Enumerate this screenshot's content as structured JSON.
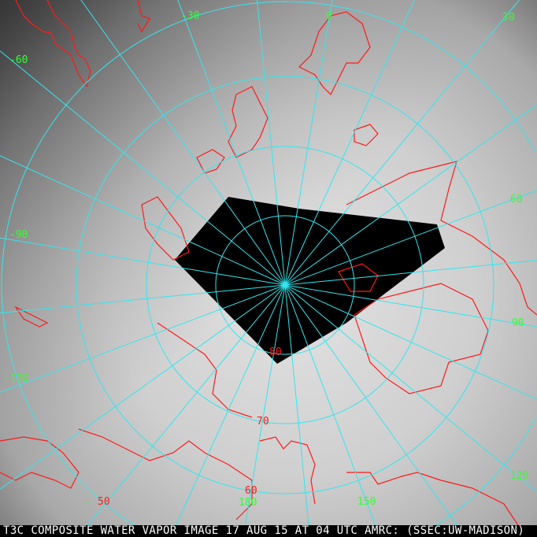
{
  "caption": "T3C COMPOSITE WATER VAPOR IMAGE 17 AUG 15 AT 04 UTC AMRC: (SSEC:UW-MADISON)",
  "colors": {
    "graticule": "#33e6ee",
    "coastline": "#ff1a1a",
    "longitude_label": "#33ff33",
    "latitude_label": "#ff1a1a",
    "no_data": "#000000"
  },
  "longitude_labels": [
    {
      "text": "-30"
    },
    {
      "text": "0"
    },
    {
      "text": "30"
    },
    {
      "text": "-60"
    },
    {
      "text": "-90"
    },
    {
      "text": "60"
    },
    {
      "text": "90"
    },
    {
      "text": "-120"
    },
    {
      "text": "120"
    },
    {
      "text": "180"
    },
    {
      "text": "150"
    },
    {
      "text": "-"
    }
  ],
  "latitude_labels": [
    {
      "text": "80"
    },
    {
      "text": "70"
    },
    {
      "text": "60"
    },
    {
      "text": "50"
    }
  ]
}
